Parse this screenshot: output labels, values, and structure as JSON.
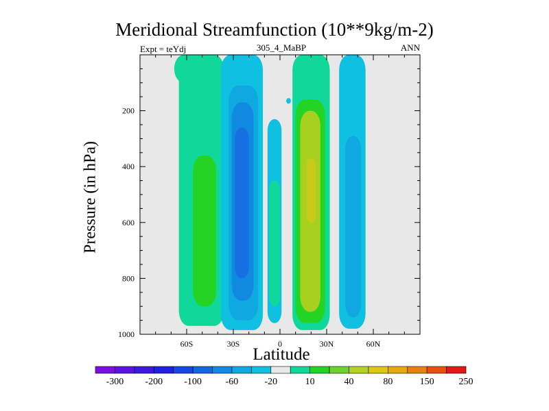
{
  "chart_data": {
    "type": "heatmap",
    "title": "Meridional Streamfunction (10**9kg/m-2)",
    "left_label": "Expt = teYdj",
    "center_label": "305_4_MaBP",
    "right_label": "ANN",
    "xlabel": "Latitude",
    "ylabel": "Pressure (in hPa)",
    "xlim": [
      -90,
      90
    ],
    "ylim": [
      1000,
      0
    ],
    "x_ticks": [
      {
        "value": -60,
        "label": "60S"
      },
      {
        "value": -30,
        "label": "30S"
      },
      {
        "value": 0,
        "label": "0"
      },
      {
        "value": 30,
        "label": "30N"
      },
      {
        "value": 60,
        "label": "60N"
      }
    ],
    "y_ticks": [
      {
        "value": 200,
        "label": "200"
      },
      {
        "value": 400,
        "label": "400"
      },
      {
        "value": 600,
        "label": "600"
      },
      {
        "value": 800,
        "label": "800"
      },
      {
        "value": 1000,
        "label": "1000"
      }
    ],
    "colorbar": {
      "colors": [
        "#7a10e0",
        "#5a14e0",
        "#3a18e0",
        "#2020e0",
        "#1846e0",
        "#1268e0",
        "#108ae0",
        "#10a8e0",
        "#10c0e0",
        "#e8e8e8",
        "#10d89a",
        "#24d424",
        "#70d030",
        "#b4d020",
        "#dcc810",
        "#e8a810",
        "#e88010",
        "#e85010",
        "#e01818"
      ],
      "labels": [
        "-300",
        "-200",
        "-100",
        "-60",
        "-20",
        "10",
        "40",
        "80",
        "150",
        "250"
      ]
    },
    "contours": [
      {
        "name": "cell-a",
        "level": "10",
        "color": "#10d89a",
        "lat_min": -68,
        "lat_max": -52,
        "p_min": 0,
        "p_max": 100
      },
      {
        "name": "cell-b",
        "level": "10",
        "color": "#10d89a",
        "lat_min": -65,
        "lat_max": -36,
        "p_min": 0,
        "p_max": 970
      },
      {
        "name": "cell-c",
        "level": "40",
        "color": "#24d424",
        "lat_min": -56,
        "lat_max": -41,
        "p_min": 360,
        "p_max": 900
      },
      {
        "name": "cell-d",
        "level": "-20",
        "color": "#10c0e0",
        "lat_min": -38,
        "lat_max": -11,
        "p_min": 0,
        "p_max": 985
      },
      {
        "name": "cell-e",
        "level": "-60",
        "color": "#10a8e0",
        "lat_min": -33,
        "lat_max": -14,
        "p_min": 110,
        "p_max": 950
      },
      {
        "name": "cell-f",
        "level": "-60",
        "color": "#108ae0",
        "lat_min": -31,
        "lat_max": -17,
        "p_min": 170,
        "p_max": 880
      },
      {
        "name": "cell-g",
        "level": "-100",
        "color": "#1870e0",
        "lat_min": -29,
        "lat_max": -20,
        "p_min": 260,
        "p_max": 800
      },
      {
        "name": "cell-h",
        "level": "-20",
        "color": "#10c0e0",
        "lat_min": -8,
        "lat_max": 1,
        "p_min": 230,
        "p_max": 960
      },
      {
        "name": "cell-i",
        "level": "10",
        "color": "#10d89a",
        "lat_min": -7,
        "lat_max": 0,
        "p_min": 450,
        "p_max": 900
      },
      {
        "name": "cell-j",
        "level": "-20",
        "color": "#10c0e0",
        "lat_min": 4,
        "lat_max": 7,
        "p_min": 155,
        "p_max": 175
      },
      {
        "name": "cell-k",
        "level": "10",
        "color": "#10d89a",
        "lat_min": 8,
        "lat_max": 32,
        "p_min": 0,
        "p_max": 985
      },
      {
        "name": "cell-l",
        "level": "40",
        "color": "#24d424",
        "lat_min": 10,
        "lat_max": 29,
        "p_min": 160,
        "p_max": 960
      },
      {
        "name": "cell-m",
        "level": "80",
        "color": "#a8d020",
        "lat_min": 13,
        "lat_max": 26,
        "p_min": 200,
        "p_max": 920
      },
      {
        "name": "cell-n",
        "level": "150",
        "color": "#c8cc18",
        "lat_min": 17,
        "lat_max": 23,
        "p_min": 370,
        "p_max": 600
      },
      {
        "name": "cell-o",
        "level": "-20",
        "color": "#10c0e0",
        "lat_min": 38,
        "lat_max": 55,
        "p_min": 0,
        "p_max": 980
      },
      {
        "name": "cell-p",
        "level": "-20",
        "color": "#10a8e0",
        "lat_min": 42,
        "lat_max": 52,
        "p_min": 290,
        "p_max": 940
      }
    ]
  }
}
